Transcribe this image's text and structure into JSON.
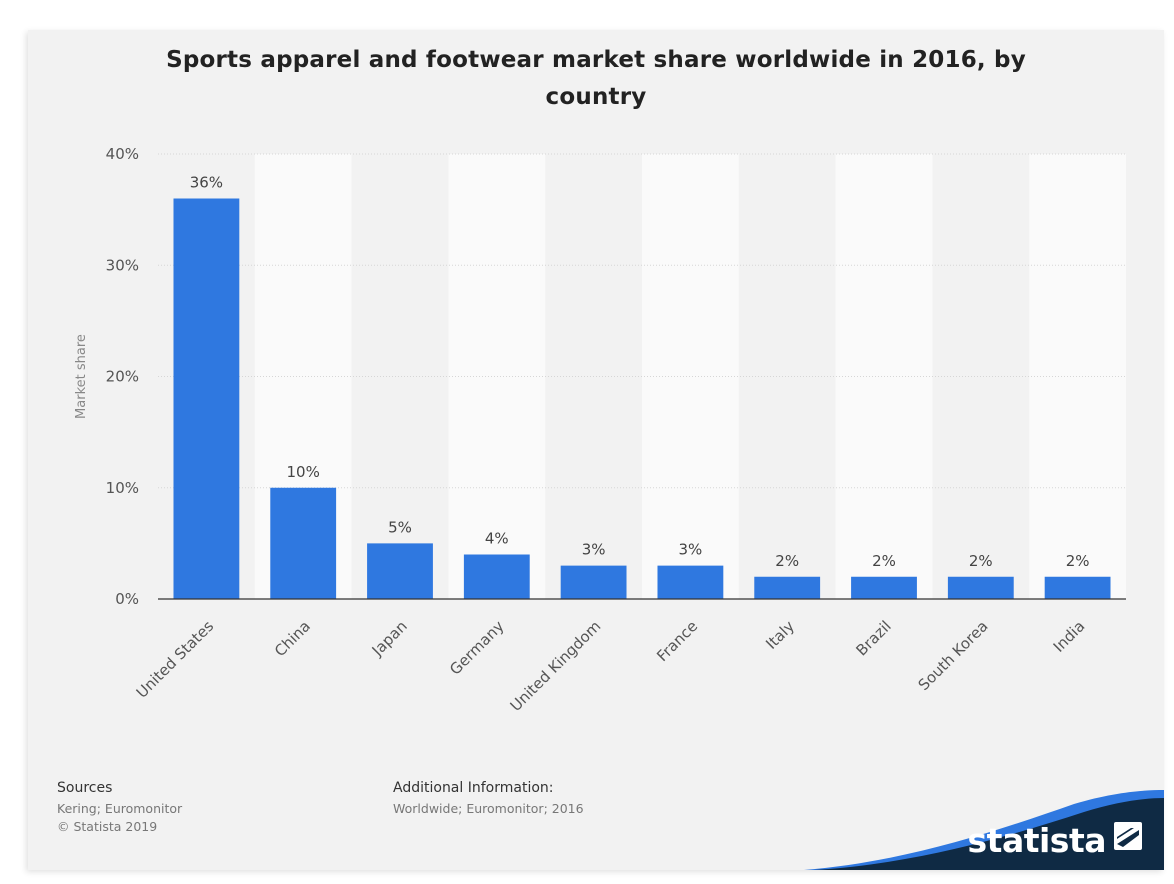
{
  "chart_data": {
    "type": "bar",
    "title": "Sports apparel and footwear market share worldwide in 2016, by country",
    "title_lines": [
      "Sports apparel and footwear market share worldwide in 2016, by",
      "country"
    ],
    "xlabel": "",
    "ylabel": "Market share",
    "categories": [
      "United States",
      "China",
      "Japan",
      "Germany",
      "United Kingdom",
      "France",
      "Italy",
      "Brazil",
      "South Korea",
      "India"
    ],
    "values": [
      36,
      10,
      5,
      4,
      3,
      3,
      2,
      2,
      2,
      2
    ],
    "value_labels": [
      "36%",
      "10%",
      "5%",
      "4%",
      "3%",
      "3%",
      "2%",
      "2%",
      "2%",
      "2%"
    ],
    "ylim": [
      0,
      40
    ],
    "yticks": [
      0,
      10,
      20,
      30,
      40
    ],
    "ytick_labels": [
      "0%",
      "10%",
      "20%",
      "30%",
      "40%"
    ],
    "grid": true,
    "bar_color": "#2f78e0"
  },
  "footer": {
    "sources_label": "Sources",
    "sources_lines": [
      "Kering; Euromonitor",
      "© Statista 2019"
    ],
    "additional_label": "Additional Information:",
    "additional_text": "Worldwide; Euromonitor; 2016"
  },
  "brand": {
    "logo_text": "statista",
    "logo_icon": "statista-logo-icon",
    "dark_color": "#0f2a44",
    "accent_color": "#2f78e0"
  }
}
